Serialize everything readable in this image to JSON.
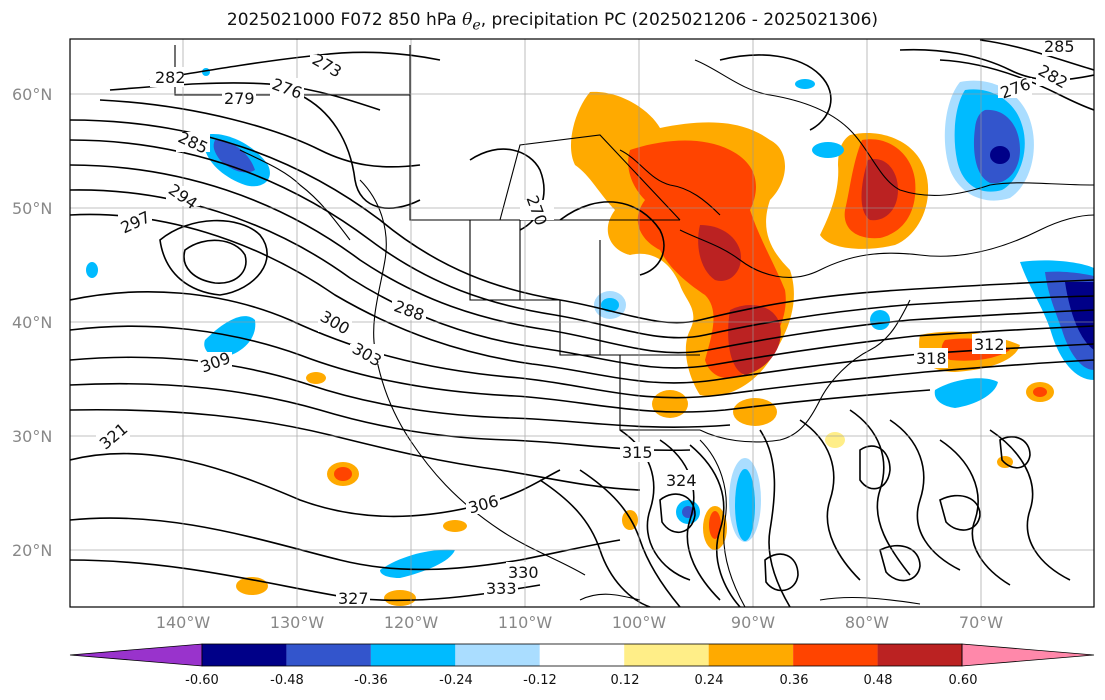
{
  "title": {
    "prefix": "2025021000 F072 850 hPa ",
    "theta": "θ",
    "theta_sub": "e",
    "suffix": ", precipitation PC (2025021206 - 2025021306)"
  },
  "lat_labels": [
    "60°N",
    "50°N",
    "40°N",
    "30°N",
    "20°N"
  ],
  "lon_labels": [
    "140°W",
    "130°W",
    "120°W",
    "110°W",
    "100°W",
    "90°W",
    "80°W",
    "70°W"
  ],
  "colorbar": {
    "colors": [
      "#9933cc",
      "#000088",
      "#3355cc",
      "#00bbff",
      "#aaddff",
      "#ffffff",
      "#ffee88",
      "#ffaa00",
      "#ff4400",
      "#bb2222",
      "#ff88aa"
    ],
    "labels": [
      "-0.60",
      "-0.48",
      "-0.36",
      "-0.24",
      "-0.12",
      "0.12",
      "0.24",
      "0.36",
      "0.48",
      "0.60"
    ]
  },
  "contour_labels": [
    "282",
    "276",
    "279",
    "273",
    "285",
    "294",
    "297",
    "270",
    "288",
    "300",
    "303",
    "309",
    "321",
    "306",
    "318",
    "312",
    "315",
    "324",
    "330",
    "333",
    "327",
    "282",
    "276",
    "285"
  ]
}
